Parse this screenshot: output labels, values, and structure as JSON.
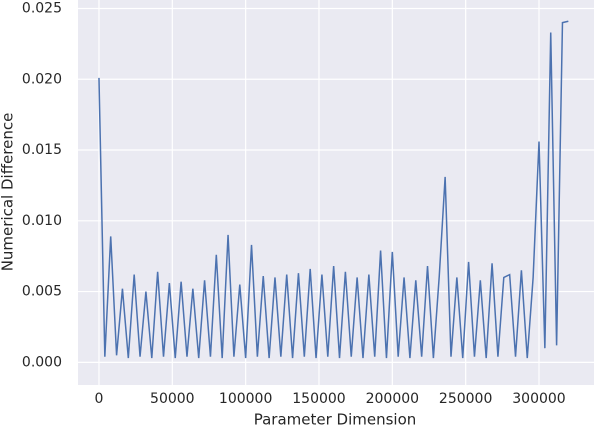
{
  "chart_data": {
    "type": "line",
    "x_label": "Parameter Dimension",
    "y_label": "Numerical Difference",
    "x": [
      0,
      4000,
      8000,
      12000,
      16000,
      20000,
      24000,
      28000,
      32000,
      36000,
      40000,
      44000,
      48000,
      52000,
      56000,
      60000,
      64000,
      68000,
      72000,
      76000,
      80000,
      84000,
      88000,
      92000,
      96000,
      100000,
      104000,
      108000,
      112000,
      116000,
      120000,
      124000,
      128000,
      132000,
      136000,
      140000,
      144000,
      148000,
      152000,
      156000,
      160000,
      164000,
      168000,
      172000,
      176000,
      180000,
      184000,
      188000,
      192000,
      196000,
      200000,
      204000,
      208000,
      212000,
      216000,
      220000,
      224000,
      228000,
      232000,
      236000,
      240000,
      244000,
      248000,
      252000,
      256000,
      260000,
      264000,
      268000,
      272000,
      276000,
      280000,
      284000,
      288000,
      292000,
      296000,
      300000,
      304000,
      308000,
      312000,
      316000,
      320000
    ],
    "series": [
      {
        "name": "Numerical Difference",
        "color": "#4c72b0",
        "values": [
          0.0201,
          0.0004,
          0.0089,
          0.0005,
          0.0052,
          0.0003,
          0.0062,
          0.0004,
          0.005,
          0.0003,
          0.0064,
          0.0004,
          0.0056,
          0.0003,
          0.0057,
          0.0004,
          0.0052,
          0.0003,
          0.0058,
          0.0004,
          0.0076,
          0.0003,
          0.009,
          0.0004,
          0.0055,
          0.0003,
          0.0083,
          0.0004,
          0.0061,
          0.0003,
          0.006,
          0.0004,
          0.0062,
          0.0003,
          0.0063,
          0.0004,
          0.0066,
          0.0003,
          0.0062,
          0.0004,
          0.0068,
          0.0003,
          0.0064,
          0.0004,
          0.006,
          0.0003,
          0.0062,
          0.0004,
          0.0079,
          0.0003,
          0.0078,
          0.0004,
          0.006,
          0.0003,
          0.0058,
          0.0004,
          0.0068,
          0.0003,
          0.0061,
          0.0131,
          0.0004,
          0.006,
          0.0003,
          0.0071,
          0.0004,
          0.0058,
          0.0003,
          0.007,
          0.0004,
          0.006,
          0.0062,
          0.0004,
          0.0065,
          0.0003,
          0.006,
          0.0156,
          0.001,
          0.0233,
          0.0012,
          0.024,
          0.0241
        ]
      }
    ],
    "xlim": [
      -14300,
      337500
    ],
    "ylim": [
      -0.0016,
      0.0256
    ],
    "xticks": [
      0,
      50000,
      100000,
      150000,
      200000,
      250000,
      300000
    ],
    "yticks": [
      {
        "value": 0,
        "label": "0.000"
      },
      {
        "value": 0.005,
        "label": "0.005"
      },
      {
        "value": 0.01,
        "label": "0.010"
      },
      {
        "value": 0.015,
        "label": "0.015"
      },
      {
        "value": 0.02,
        "label": "0.020"
      },
      {
        "value": 0.025,
        "label": "0.025"
      }
    ],
    "grid": true,
    "background": "#eaeaf2"
  }
}
